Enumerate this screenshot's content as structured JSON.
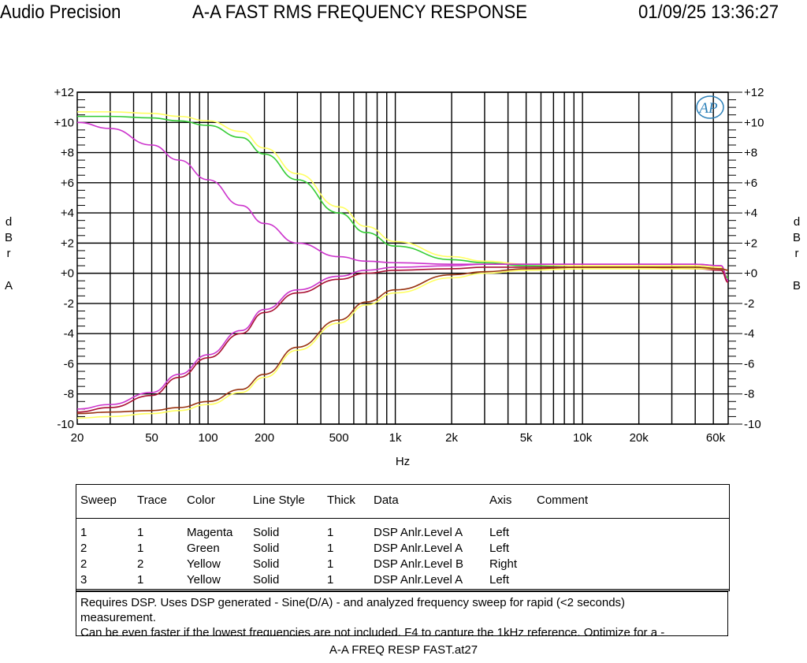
{
  "header": {
    "brand": "Audio Precision",
    "title": "A-A FAST RMS FREQUENCY RESPONSE",
    "datetime": "01/09/25 13:36:27"
  },
  "chart_data": {
    "type": "line",
    "title": "A-A FAST RMS FREQUENCY RESPONSE",
    "xlabel": "Hz",
    "ylabel_left": [
      "d",
      "B",
      "r",
      "A"
    ],
    "ylabel_right": [
      "d",
      "B",
      "r",
      "B"
    ],
    "x_scale": "log",
    "xlim": [
      20,
      60000
    ],
    "ylim": [
      -10,
      12
    ],
    "grid": true,
    "x_ticks": [
      20,
      50,
      100,
      200,
      500,
      1000,
      2000,
      5000,
      10000,
      20000,
      60000
    ],
    "x_tick_labels": [
      "20",
      "50",
      "100",
      "200",
      "500",
      "1k",
      "2k",
      "5k",
      "10k",
      "20k",
      "60k"
    ],
    "y_ticks": [
      12,
      10,
      8,
      6,
      4,
      2,
      0,
      -2,
      -4,
      -6,
      -8,
      -10
    ],
    "y_tick_labels": [
      "+12",
      "+10",
      "+8",
      "+6",
      "+4",
      "+2",
      "+0",
      "-2",
      "-4",
      "-6",
      "-8",
      "-10"
    ],
    "logo": "AP",
    "x": [
      20,
      30,
      50,
      70,
      100,
      150,
      200,
      300,
      500,
      700,
      1000,
      2000,
      3000,
      5000,
      10000,
      20000,
      40000,
      55000,
      60000
    ],
    "series": [
      {
        "color": "#ffff60",
        "values": [
          10.7,
          10.7,
          10.6,
          10.4,
          10.1,
          9.4,
          8.3,
          6.6,
          4.4,
          3.1,
          2.1,
          1.1,
          0.8,
          0.6,
          0.5,
          0.5,
          0.5,
          0.4,
          -0.3
        ]
      },
      {
        "color": "#33cc33",
        "values": [
          10.4,
          10.4,
          10.3,
          10.1,
          9.8,
          9.0,
          7.9,
          6.2,
          4.0,
          2.7,
          1.8,
          0.9,
          0.7,
          0.5,
          0.4,
          0.4,
          0.4,
          0.3,
          -0.3
        ]
      },
      {
        "color": "#cc33cc",
        "values": [
          10.0,
          9.6,
          8.5,
          7.5,
          6.2,
          4.5,
          3.3,
          2.0,
          1.1,
          0.8,
          0.7,
          0.6,
          0.6,
          0.6,
          0.6,
          0.6,
          0.6,
          0.5,
          -0.5
        ]
      },
      {
        "color": "#cc33cc",
        "values": [
          -9.0,
          -8.7,
          -7.9,
          -6.7,
          -5.4,
          -3.8,
          -2.4,
          -1.1,
          -0.2,
          0.2,
          0.4,
          0.5,
          0.6,
          0.6,
          0.6,
          0.6,
          0.6,
          0.5,
          -0.5
        ]
      },
      {
        "color": "#aa1133",
        "values": [
          -9.2,
          -8.9,
          -8.1,
          -6.9,
          -5.6,
          -4.0,
          -2.6,
          -1.3,
          -0.4,
          0.0,
          0.2,
          0.3,
          0.4,
          0.4,
          0.4,
          0.4,
          0.3,
          0.2,
          -0.6
        ]
      },
      {
        "color": "#ffff60",
        "values": [
          -9.6,
          -9.5,
          -9.3,
          -9.1,
          -8.7,
          -7.9,
          -6.9,
          -5.1,
          -3.3,
          -2.1,
          -1.3,
          -0.3,
          0.0,
          0.2,
          0.3,
          0.3,
          0.3,
          0.3,
          0.2
        ]
      },
      {
        "color": "#993311",
        "values": [
          -9.3,
          -9.2,
          -9.1,
          -8.9,
          -8.5,
          -7.7,
          -6.7,
          -4.9,
          -3.1,
          -1.9,
          -1.1,
          -0.1,
          0.1,
          0.3,
          0.4,
          0.4,
          0.4,
          0.3,
          0.2
        ]
      }
    ]
  },
  "legend": {
    "columns": [
      "Sweep",
      "Trace",
      "Color",
      "Line Style",
      "Thick",
      "Data",
      "Axis",
      "Comment"
    ],
    "rows": [
      [
        "1",
        "1",
        "Magenta",
        "Solid",
        "1",
        "DSP Anlr.Level A",
        "Left",
        ""
      ],
      [
        "2",
        "1",
        "Green",
        "Solid",
        "1",
        "DSP Anlr.Level A",
        "Left",
        ""
      ],
      [
        "2",
        "2",
        "Yellow",
        "Solid",
        "1",
        "DSP Anlr.Level B",
        "Right",
        ""
      ],
      [
        "3",
        "1",
        "Yellow",
        "Solid",
        "1",
        "DSP Anlr.Level A",
        "Left",
        ""
      ]
    ]
  },
  "notes": [
    "Requires DSP.  Uses DSP generated - Sine(D/A) - and analyzed frequency sweep for rapid (<2 seconds)",
    "measurement.",
    "Can be even faster if the lowest frequencies are not included. F4 to capture the 1kHz reference. Optimize for a -"
  ],
  "footer": "A-A FREQ RESP FAST.at27"
}
